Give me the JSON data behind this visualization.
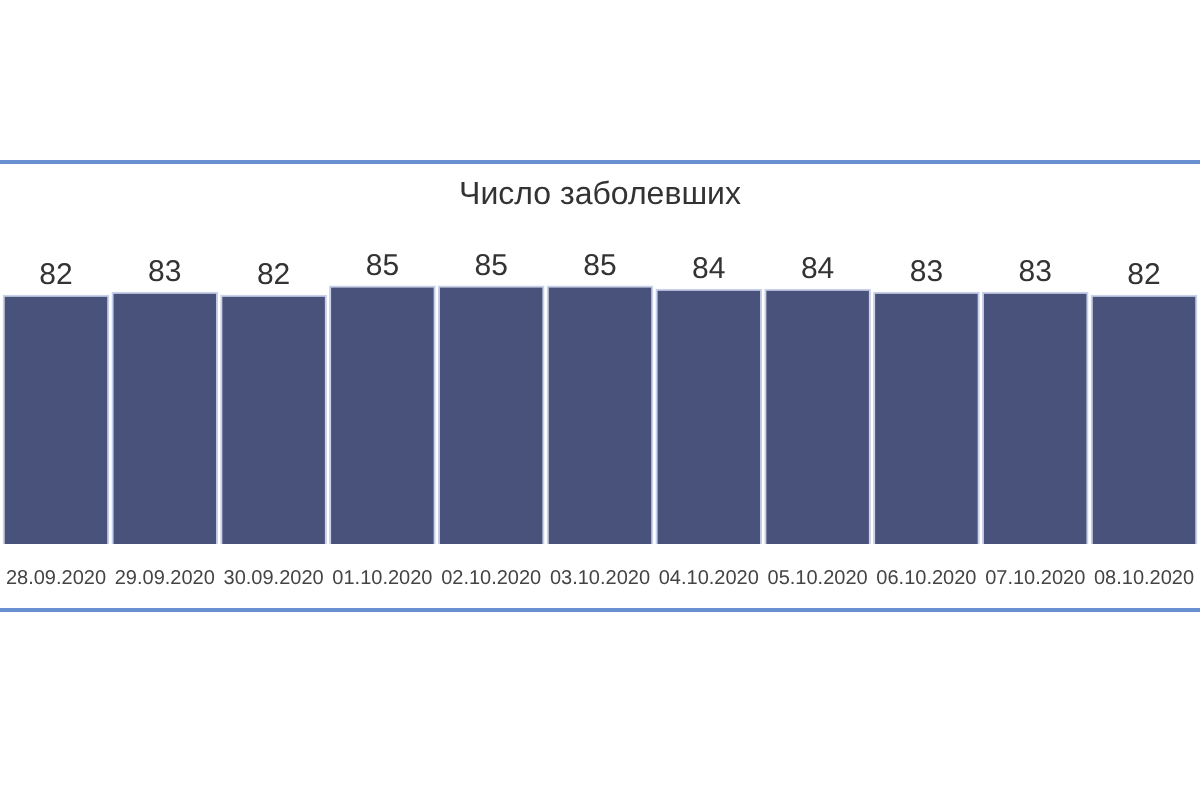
{
  "chart_data": {
    "type": "bar",
    "title": "Число заболевших",
    "categories": [
      "28.09.2020",
      "29.09.2020",
      "30.09.2020",
      "01.10.2020",
      "02.10.2020",
      "03.10.2020",
      "04.10.2020",
      "05.10.2020",
      "06.10.2020",
      "07.10.2020",
      "08.10.2020"
    ],
    "values": [
      82,
      83,
      82,
      85,
      85,
      85,
      84,
      84,
      83,
      83,
      82
    ],
    "color": "#48527a",
    "data_labels": true
  }
}
